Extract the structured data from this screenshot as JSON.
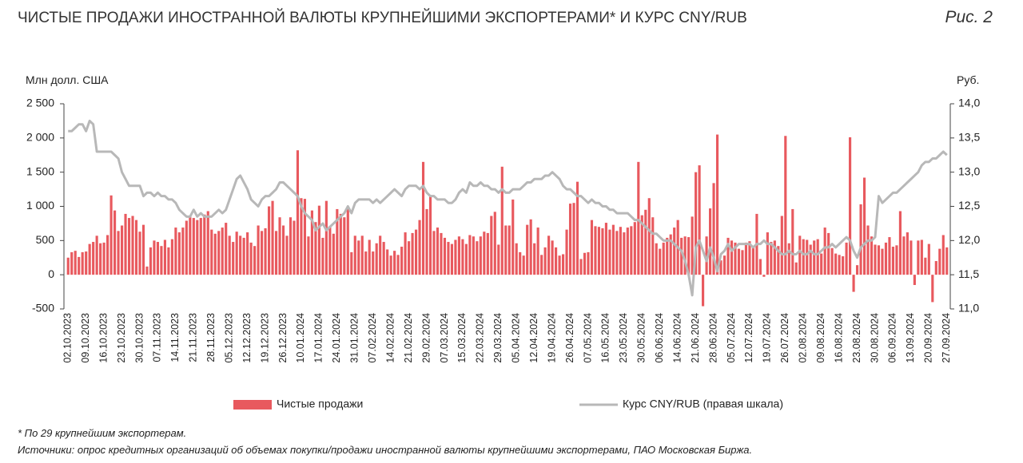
{
  "chart_data": {
    "type": "bar_line",
    "title": "ЧИСТЫЕ ПРОДАЖИ ИНОСТРАННОЙ ВАЛЮТЫ КРУПНЕЙШИМИ ЭКСПОРТЕРАМИ* И КУРС CNY/RUB",
    "figure_label": "Рис. 2",
    "y_label": "Млн долл. США",
    "y2_label": "Руб.",
    "footnote": "* По 29 крупнейшим экспортерам.",
    "source": "Источники: опрос кредитных организаций об объемах покупки/продажи иностранной валюты крупнейшими экспортерами, ПАО Московская Биржа.",
    "ylim": [
      -500,
      2500
    ],
    "yticks": [
      -500,
      0,
      500,
      {
        "value": 1000,
        "label": "1 000"
      },
      {
        "value": 1500,
        "label": "1 500"
      },
      {
        "value": 2000,
        "label": "2 000"
      },
      {
        "value": 2500,
        "label": "2 500"
      }
    ],
    "y2lim": [
      11,
      14
    ],
    "y2ticks": [
      {
        "value": 11,
        "label": "11,0"
      },
      {
        "value": 11.5,
        "label": "11,5"
      },
      {
        "value": 12,
        "label": "12,0"
      },
      {
        "value": 12.5,
        "label": "12,5"
      },
      {
        "value": 13,
        "label": "13,0"
      },
      {
        "value": 13.5,
        "label": "13,5"
      },
      {
        "value": 14,
        "label": "14,0"
      }
    ],
    "categories": [
      "02.10.2023",
      null,
      null,
      null,
      null,
      "09.10.2023",
      null,
      null,
      null,
      null,
      "16.10.2023",
      null,
      null,
      null,
      null,
      "23.10.2023",
      null,
      null,
      null,
      null,
      "30.10.2023",
      null,
      null,
      null,
      null,
      "07.11.2023",
      null,
      null,
      null,
      null,
      "14.11.2023",
      null,
      null,
      null,
      null,
      "21.11.2023",
      null,
      null,
      null,
      null,
      "28.11.2023",
      null,
      null,
      null,
      null,
      "05.12.2023",
      null,
      null,
      null,
      null,
      "12.12.2023",
      null,
      null,
      null,
      null,
      "19.12.2023",
      null,
      null,
      null,
      null,
      "26.12.2023",
      null,
      null,
      null,
      null,
      "10.01.2024",
      null,
      null,
      null,
      null,
      "17.01.2024",
      null,
      null,
      null,
      null,
      "24.01.2024",
      null,
      null,
      null,
      null,
      "31.01.2024",
      null,
      null,
      null,
      null,
      "07.02.2024",
      null,
      null,
      null,
      null,
      "14.02.2024",
      null,
      null,
      null,
      null,
      "21.02.2024",
      null,
      null,
      null,
      null,
      "29.02.2024",
      null,
      null,
      null,
      null,
      "07.03.2024",
      null,
      null,
      null,
      null,
      "15.03.2024",
      null,
      null,
      null,
      null,
      "22.03.2024",
      null,
      null,
      null,
      null,
      "29.03.2024",
      null,
      null,
      null,
      null,
      "05.04.2024",
      null,
      null,
      null,
      null,
      "12.04.2024",
      null,
      null,
      null,
      null,
      "19.04.2024",
      null,
      null,
      null,
      null,
      "26.04.2024",
      null,
      null,
      null,
      null,
      "07.05.2024",
      null,
      null,
      null,
      null,
      "16.05.2024",
      null,
      null,
      null,
      null,
      "23.05.2024",
      null,
      null,
      null,
      null,
      "30.05.2024",
      null,
      null,
      null,
      null,
      "06.06.2024",
      null,
      null,
      null,
      null,
      "14.06.2024",
      null,
      null,
      null,
      null,
      "21.06.2024",
      null,
      null,
      null,
      null,
      "28.06.2024",
      null,
      null,
      null,
      null,
      "05.07.2024",
      null,
      null,
      null,
      null,
      "12.07.2024",
      null,
      null,
      null,
      null,
      "19.07.2024",
      null,
      null,
      null,
      null,
      "26.07.2024",
      null,
      null,
      null,
      null,
      "02.08.2024",
      null,
      null,
      null,
      null,
      "09.08.2024",
      null,
      null,
      null,
      null,
      "16.08.2024",
      null,
      null,
      null,
      null,
      "23.08.2024",
      null,
      null,
      null,
      null,
      "30.08.2024",
      null,
      null,
      null,
      null,
      "06.09.2024",
      null,
      null,
      null,
      null,
      "13.09.2024",
      null,
      null,
      null,
      null,
      "20.09.2024",
      null,
      null,
      null,
      null,
      "27.09.2024"
    ],
    "series": [
      {
        "name": "Чистые продажи",
        "type": "bar",
        "color": "#e8595e",
        "values": [
          250,
          330,
          350,
          260,
          330,
          340,
          450,
          480,
          570,
          460,
          470,
          580,
          1160,
          940,
          640,
          720,
          890,
          830,
          860,
          800,
          630,
          730,
          120,
          400,
          500,
          480,
          420,
          510,
          400,
          520,
          690,
          620,
          690,
          790,
          860,
          830,
          800,
          830,
          880,
          930,
          660,
          600,
          640,
          690,
          760,
          570,
          480,
          630,
          570,
          540,
          620,
          470,
          420,
          720,
          640,
          680,
          1000,
          1080,
          640,
          840,
          720,
          570,
          840,
          790,
          1820,
          1120,
          1110,
          560,
          940,
          770,
          1010,
          540,
          1080,
          710,
          600,
          960,
          890,
          840,
          960,
          330,
          570,
          500,
          570,
          340,
          510,
          340,
          460,
          570,
          480,
          370,
          280,
          350,
          290,
          410,
          620,
          490,
          610,
          660,
          800,
          1650,
          960,
          1140,
          640,
          690,
          610,
          540,
          480,
          450,
          510,
          560,
          520,
          450,
          580,
          560,
          490,
          560,
          630,
          610,
          860,
          920,
          440,
          1580,
          720,
          720,
          1100,
          460,
          330,
          280,
          730,
          810,
          460,
          690,
          290,
          400,
          570,
          500,
          400,
          280,
          300,
          660,
          1040,
          1050,
          1360,
          230,
          320,
          330,
          800,
          710,
          700,
          680,
          760,
          660,
          730,
          640,
          700,
          620,
          690,
          710,
          770,
          1650,
          870,
          950,
          1120,
          840,
          460,
          380,
          470,
          540,
          590,
          690,
          800,
          540,
          560,
          550,
          850,
          1500,
          1600,
          -460,
          560,
          970,
          1340,
          2050,
          210,
          280,
          540,
          500,
          470,
          380,
          360,
          470,
          490,
          410,
          890,
          230,
          -30,
          620,
          480,
          500,
          420,
          860,
          2030,
          460,
          960,
          180,
          570,
          520,
          510,
          440,
          500,
          520,
          310,
          690,
          610,
          390,
          310,
          290,
          270,
          470,
          2010,
          -250,
          140,
          1030,
          1420,
          720,
          560,
          440,
          430,
          380,
          470,
          550,
          410,
          430,
          930,
          560,
          620,
          500,
          -150,
          500,
          510,
          250,
          450,
          -400,
          200,
          380,
          580,
          400
        ]
      },
      {
        "name": "Курс CNY/RUB (правая шкала)",
        "type": "line",
        "axis": "y2",
        "color": "#b8b8b8",
        "values": [
          13.6,
          13.6,
          13.65,
          13.7,
          13.7,
          13.6,
          13.75,
          13.7,
          13.3,
          13.3,
          13.3,
          13.3,
          13.3,
          13.25,
          13.2,
          13.0,
          12.9,
          12.8,
          12.8,
          12.8,
          12.8,
          12.65,
          12.7,
          12.7,
          12.65,
          12.7,
          12.65,
          12.65,
          12.6,
          12.6,
          12.55,
          12.45,
          12.4,
          12.35,
          12.35,
          12.45,
          12.35,
          12.4,
          12.35,
          12.35,
          12.35,
          12.4,
          12.45,
          12.4,
          12.45,
          12.6,
          12.75,
          12.9,
          12.95,
          12.85,
          12.75,
          12.6,
          12.55,
          12.5,
          12.6,
          12.65,
          12.65,
          12.7,
          12.75,
          12.85,
          12.85,
          12.8,
          12.75,
          12.7,
          12.65,
          12.5,
          12.4,
          12.35,
          12.3,
          12.15,
          12.2,
          12.25,
          12.15,
          12.2,
          12.25,
          12.3,
          12.35,
          12.4,
          12.5,
          12.4,
          12.55,
          12.6,
          12.6,
          12.6,
          12.6,
          12.55,
          12.6,
          12.55,
          12.6,
          12.65,
          12.7,
          12.75,
          12.7,
          12.65,
          12.75,
          12.8,
          12.8,
          12.8,
          12.75,
          12.8,
          12.7,
          12.65,
          12.65,
          12.6,
          12.6,
          12.6,
          12.55,
          12.55,
          12.6,
          12.7,
          12.75,
          12.7,
          12.85,
          12.8,
          12.8,
          12.85,
          12.8,
          12.8,
          12.75,
          12.75,
          12.7,
          12.75,
          12.7,
          12.7,
          12.75,
          12.75,
          12.75,
          12.8,
          12.85,
          12.85,
          12.9,
          12.9,
          12.9,
          12.95,
          12.95,
          13.0,
          12.95,
          12.9,
          12.8,
          12.75,
          12.75,
          12.7,
          12.65,
          12.65,
          12.6,
          12.55,
          12.6,
          12.55,
          12.55,
          12.5,
          12.5,
          12.45,
          12.45,
          12.4,
          12.4,
          12.4,
          12.4,
          12.35,
          12.3,
          12.3,
          12.25,
          12.2,
          12.15,
          12.1,
          12.1,
          12.05,
          12.0,
          12.0,
          12.0,
          11.95,
          11.9,
          11.85,
          11.7,
          11.5,
          11.2,
          11.9,
          12.0,
          11.85,
          11.7,
          11.9,
          11.75,
          11.55,
          11.8,
          11.85,
          11.95,
          11.85,
          11.9,
          11.95,
          11.95,
          11.95,
          11.95,
          11.9,
          11.95,
          11.95,
          12.0,
          11.95,
          11.95,
          11.9,
          11.85,
          11.8,
          11.8,
          11.85,
          11.8,
          11.8,
          11.85,
          11.8,
          11.8,
          11.85,
          11.8,
          11.8,
          11.85,
          11.9,
          11.9,
          11.95,
          11.9,
          11.95,
          12.0,
          12.05,
          12.0,
          11.85,
          11.75,
          11.9,
          11.95,
          12.0,
          12.0,
          12.05,
          12.65,
          12.55,
          12.6,
          12.65,
          12.7,
          12.7,
          12.75,
          12.8,
          12.85,
          12.9,
          12.95,
          13.0,
          13.1,
          13.15,
          13.15,
          13.2,
          13.2,
          13.25,
          13.3,
          13.25
        ]
      }
    ]
  }
}
